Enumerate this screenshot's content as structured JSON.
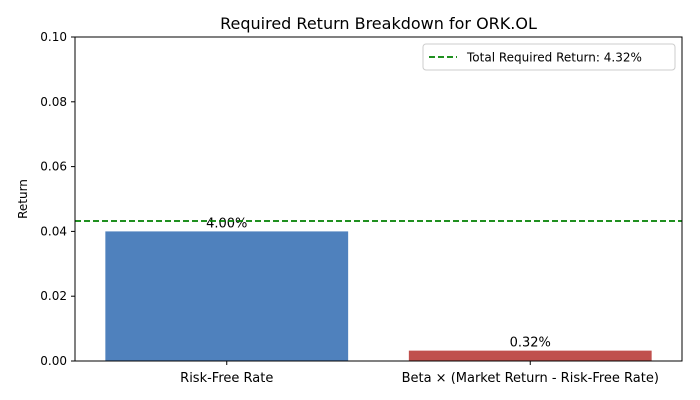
{
  "chart_data": {
    "type": "bar",
    "title": "Required Return Breakdown for ORK.OL",
    "xlabel": "",
    "ylabel": "Return",
    "ylim": [
      0,
      0.1
    ],
    "yticks": [
      "0.00",
      "0.02",
      "0.04",
      "0.06",
      "0.08",
      "0.10"
    ],
    "categories": [
      "Risk-Free Rate",
      "Beta × (Market Return - Risk-Free Rate)"
    ],
    "values": [
      0.04,
      0.0032
    ],
    "bar_labels": [
      "4.00%",
      "0.32%"
    ],
    "bar_colors": [
      "#4f81bd",
      "#c0504d"
    ],
    "reference_line": {
      "value": 0.0432,
      "label": "Total Required Return: 4.32%",
      "color": "#008000",
      "style": "dashed"
    },
    "legend_position": "top-right",
    "grid": false
  }
}
